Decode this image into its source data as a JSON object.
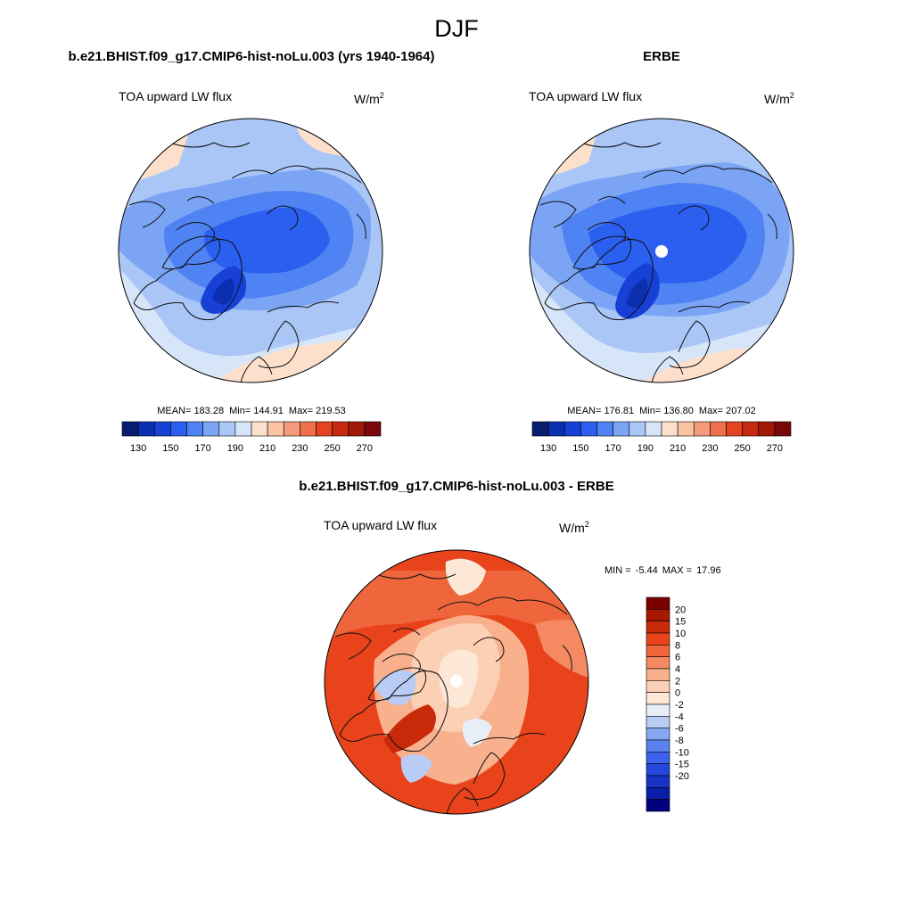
{
  "title": "DJF",
  "units_base": "W/m",
  "units_exp": "2",
  "palettes": {
    "abs": [
      "#081c70",
      "#0c2fb0",
      "#1740d6",
      "#2b5ff0",
      "#4f82f2",
      "#7ba5f4",
      "#a9c6f6",
      "#d6e6f8",
      "#fde0cc",
      "#fbc2a4",
      "#f59a7a",
      "#f0704c",
      "#e64420",
      "#c62a10",
      "#a01808",
      "#78080a"
    ],
    "diff": [
      "#00007e",
      "#0a1ea8",
      "#1732c4",
      "#2448dc",
      "#3a62ea",
      "#5a82f0",
      "#86a8f4",
      "#b8ccf6",
      "#e8eef8",
      "#fde8d8",
      "#fcd0b4",
      "#f9b08c",
      "#f58a62",
      "#f0663c",
      "#e8431a",
      "#c82a0a",
      "#a81800",
      "#7a0000"
    ]
  },
  "panels": [
    {
      "title": "b.e21.BHIST.f09_g17.CMIP6-hist-noLu.003 (yrs 1940-1964)",
      "variable": "TOA upward LW flux",
      "stats": {
        "mean_label": "MEAN=",
        "mean": "183.28",
        "min_label": "Min=",
        "min": "144.91",
        "max_label": "Max=",
        "max": "219.53"
      },
      "colorbar_labels": [
        "130",
        "150",
        "170",
        "190",
        "210",
        "230",
        "250",
        "270"
      ],
      "missing_pole": false
    },
    {
      "title": "ERBE",
      "variable": "TOA upward LW flux",
      "stats": {
        "mean_label": "MEAN=",
        "mean": "176.81",
        "min_label": "Min=",
        "min": "136.80",
        "max_label": "Max=",
        "max": "207.02"
      },
      "colorbar_labels": [
        "130",
        "150",
        "170",
        "190",
        "210",
        "230",
        "250",
        "270"
      ],
      "missing_pole": true
    },
    {
      "title": "b.e21.BHIST.f09_g17.CMIP6-hist-noLu.003 - ERBE",
      "variable": "TOA upward LW flux",
      "stats": {
        "min_label": "MIN =",
        "min": "-5.44",
        "max_label": "MAX =",
        "max": "17.96"
      },
      "colorbar_labels": [
        "20",
        "15",
        "10",
        "8",
        "6",
        "4",
        "2",
        "0",
        "-2",
        "-4",
        "-6",
        "-8",
        "-10",
        "-15",
        "-20"
      ],
      "missing_pole": true
    }
  ]
}
